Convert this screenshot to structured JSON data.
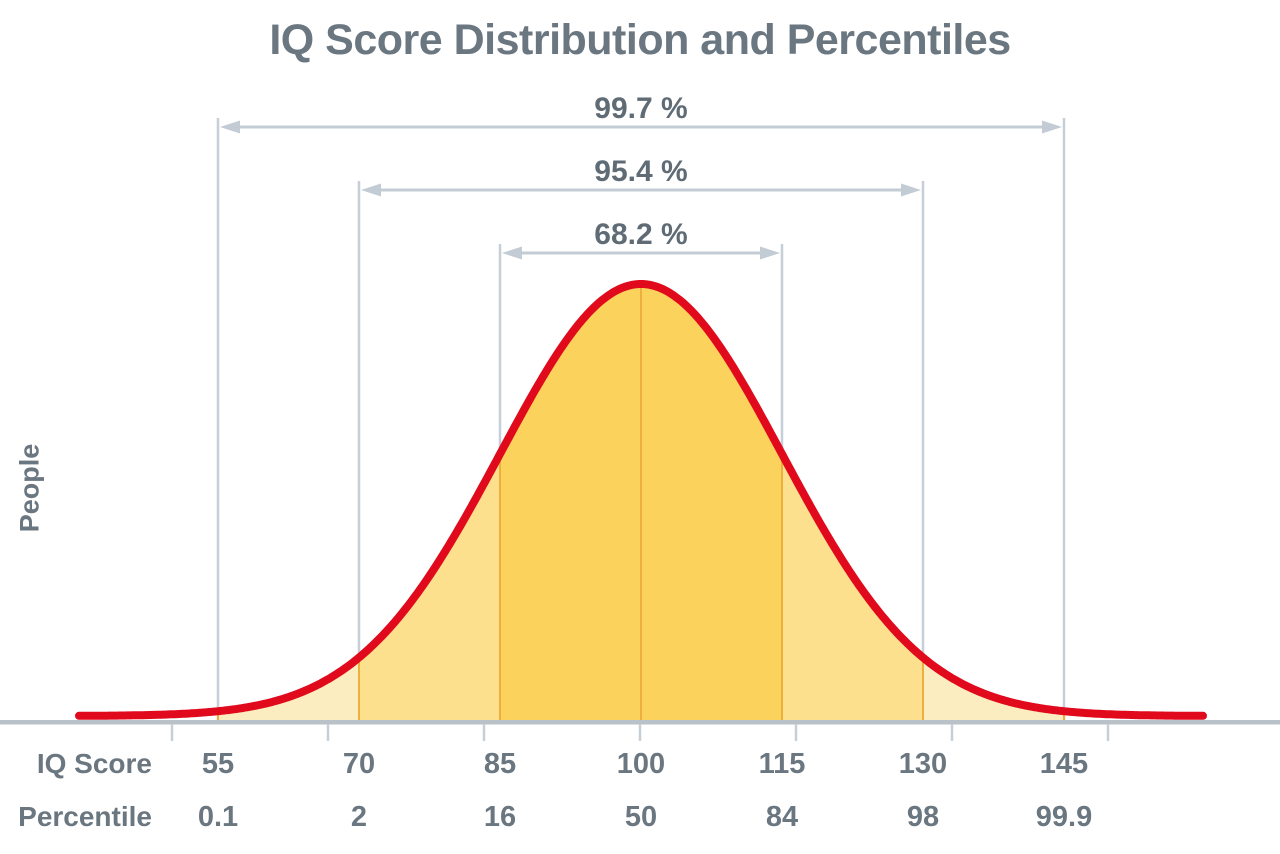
{
  "title": "IQ Score Distribution and Percentiles",
  "ylabel": "People",
  "brackets": [
    {
      "label": "99.7 %"
    },
    {
      "label": "95.4 %"
    },
    {
      "label": "68.2 %"
    }
  ],
  "axis": {
    "iq_label": "IQ Score",
    "percentile_label": "Percentile",
    "iq_values": [
      "55",
      "70",
      "85",
      "100",
      "115",
      "130",
      "145"
    ],
    "percentile_values": [
      "0.1",
      "2",
      "16",
      "50",
      "84",
      "98",
      "99.9"
    ]
  },
  "colors": {
    "curve": "#e00a1c",
    "band_1sigma": "#fbd25c",
    "band_2sigma": "#fce08e",
    "band_3sigma": "#fcedc0",
    "divider": "#eeb03c",
    "gridline": "#c6cfd7",
    "arrow": "#c3ccd4",
    "axis_line": "#b9c1c9",
    "text": "#6a7680"
  },
  "chart_data": {
    "type": "area",
    "subtype": "normal-distribution",
    "title": "IQ Score Distribution and Percentiles",
    "xlabel": "IQ Score",
    "ylabel": "People",
    "mean": 100,
    "sd": 15,
    "x_ticks": [
      55,
      70,
      85,
      100,
      115,
      130,
      145
    ],
    "percentiles": [
      0.1,
      2,
      16,
      50,
      84,
      98,
      99.9
    ],
    "coverage": [
      {
        "range": [
          55,
          145
        ],
        "percent": 99.7
      },
      {
        "range": [
          70,
          130
        ],
        "percent": 95.4
      },
      {
        "range": [
          85,
          115
        ],
        "percent": 68.2
      }
    ],
    "grid": "vertical-sigma-lines",
    "legend": "none"
  }
}
